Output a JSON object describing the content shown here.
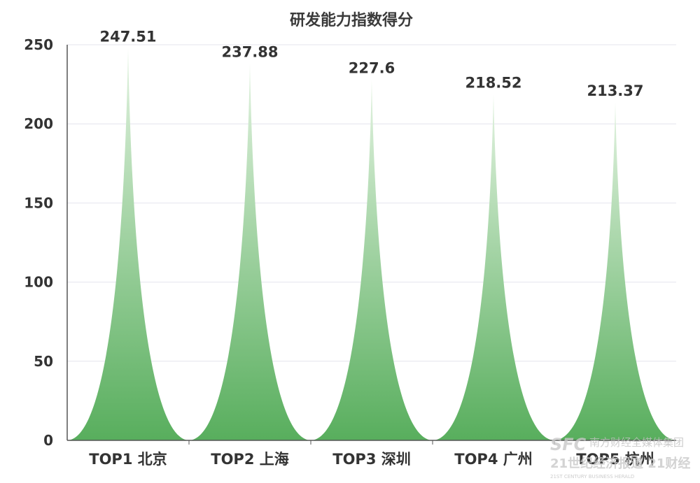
{
  "chart_data": {
    "type": "bar",
    "title": "研发能力指数得分",
    "xlabel": "",
    "ylabel": "",
    "categories": [
      "TOP1 北京",
      "TOP2 上海",
      "TOP3 深圳",
      "TOP4 广州",
      "TOP5 杭州"
    ],
    "values": [
      247.51,
      237.88,
      227.6,
      218.52,
      213.37
    ],
    "data_labels": [
      "247.51",
      "237.88",
      "227.6",
      "218.52",
      "213.37"
    ],
    "ylim": [
      0,
      250
    ],
    "yticks": [
      "0",
      "50",
      "100",
      "150",
      "200",
      "250"
    ],
    "grid": true,
    "legend": "none",
    "bar_shape": "pictorial-spike",
    "colors": {
      "bar_top": "#e3f3e1",
      "bar_bottom": "#58ae5d",
      "grid": "#e4e4ee",
      "axis": "#555555"
    }
  },
  "watermark": {
    "logo": "SFC",
    "org": "南方财经全媒体集团",
    "brand": "21世纪经济报道 21财经",
    "tagline": "21ST CENTURY BUSINESS HERALD"
  }
}
